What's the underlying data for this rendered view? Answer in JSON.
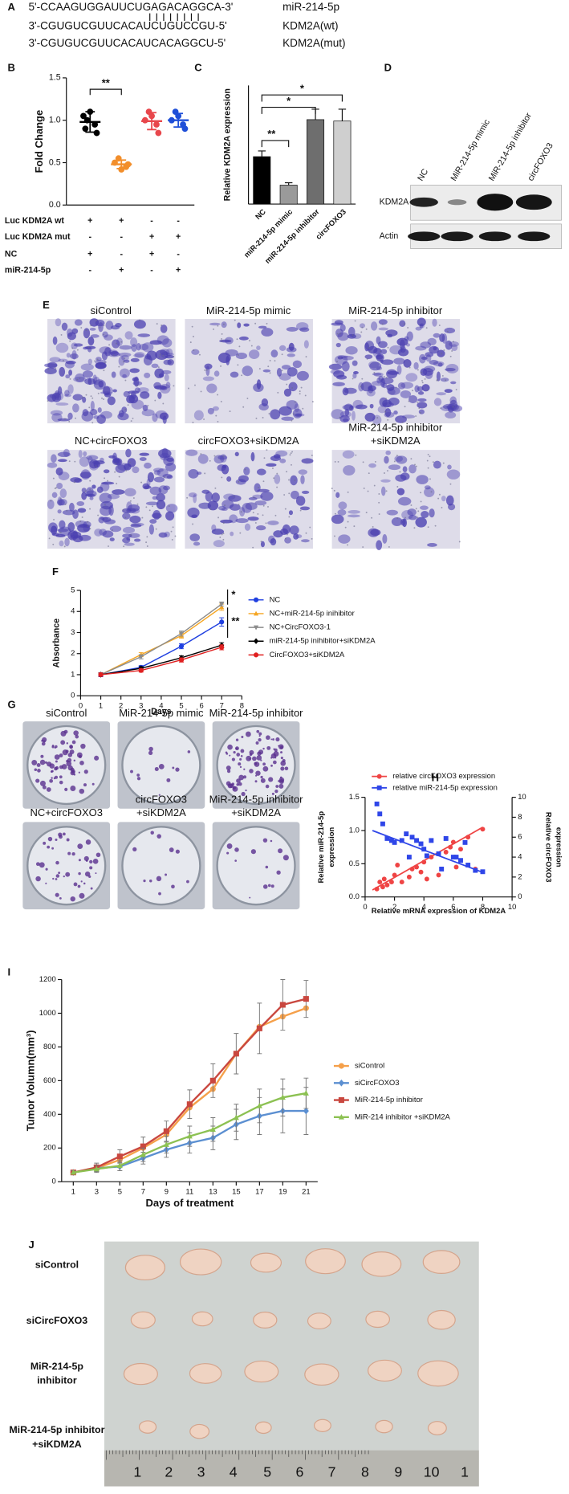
{
  "panel_labels": [
    "A",
    "B",
    "C",
    "D",
    "E",
    "F",
    "G",
    "H",
    "I",
    "J"
  ],
  "panel_a": {
    "sequences": [
      "5'-CCAAGUGGAUUCUGAGACAGGCA-3'",
      "3'-CGUGUCGUUCACAUCUGUCCGU-5'",
      "3'-CGUGUCGUUCACAUCACAGGCU-5'"
    ],
    "names": [
      "miR-214-5p",
      "KDM2A(wt)",
      "KDM2A(mut)"
    ]
  },
  "panel_b_table": {
    "rows": [
      {
        "label": "Luc KDM2A wt",
        "signs": [
          "+",
          "+",
          "-",
          "-"
        ]
      },
      {
        "label": "Luc KDM2A mut",
        "signs": [
          "-",
          "-",
          "+",
          "+"
        ]
      },
      {
        "label": "NC",
        "signs": [
          "+",
          "-",
          "+",
          "-"
        ]
      },
      {
        "label": "miR-214-5p",
        "signs": [
          "-",
          "+",
          "-",
          "+"
        ]
      }
    ]
  },
  "panel_d": {
    "lanes": [
      "NC",
      "MiR-214-5p mimic",
      "MiR-214-5p inhibitor",
      "circFOXO3"
    ],
    "bands": [
      "KDM2A",
      "Actin"
    ]
  },
  "panel_e": {
    "labels": [
      [
        "siControl"
      ],
      [
        "MiR-214-5p mimic"
      ],
      [
        "MiR-214-5p inhibitor"
      ],
      [
        "NC+circFOXO3"
      ],
      [
        "circFOXO3+siKDM2A"
      ],
      [
        "MiR-214-5p inhibitor",
        "+siKDM2A"
      ]
    ]
  },
  "panel_g": {
    "labels": [
      [
        "siControl"
      ],
      [
        "MiR-214-5p mimic"
      ],
      [
        "MiR-214-5p inhibitor"
      ],
      [
        "NC+circFOXO3"
      ],
      [
        "circFOXO3",
        "+siKDM2A"
      ],
      [
        "MiR-214-5p inhibitor",
        "+siKDM2A"
      ]
    ]
  },
  "panel_j": {
    "labels": [
      [
        "siControl"
      ],
      [
        "siCircFOXO3"
      ],
      [
        "MiR-214-5p",
        "inhibitor"
      ],
      [
        "MiR-214-5p inhibitor",
        "+siKDM2A"
      ]
    ],
    "ruler": [
      1,
      2,
      3,
      4,
      5,
      6,
      7,
      8,
      9,
      10,
      1
    ]
  },
  "chart_data": [
    {
      "type": "dot",
      "ylabel": "Fold Change",
      "ylim": [
        0,
        1.5
      ],
      "yticks": [
        {
          "value": 0,
          "label": "0.0"
        },
        0.5,
        {
          "value": 1,
          "label": "1.0"
        },
        1.5
      ],
      "groups": [
        {
          "color": "#000000",
          "values": [
            1.05,
            0.95,
            1.0,
            0.85,
            1.1,
            0.9
          ],
          "mean": 0.98,
          "sd": 0.12
        },
        {
          "color": "#f28e2b",
          "values": [
            0.5,
            0.45,
            0.55,
            0.48,
            0.42
          ],
          "mean": 0.48,
          "sd": 0.05
        },
        {
          "color": "#e8474c",
          "values": [
            1.0,
            0.95,
            1.1,
            0.85,
            1.05
          ],
          "mean": 0.99,
          "sd": 0.1
        },
        {
          "color": "#1f4fd8",
          "values": [
            1.0,
            0.95,
            1.1,
            0.9,
            1.05
          ],
          "mean": 1.0,
          "sd": 0.08
        }
      ],
      "annotations": [
        "**"
      ]
    },
    {
      "type": "bar",
      "ylabel": "Relative KDM2A expression",
      "categories": [
        "NC",
        "miR-214-5p mimic",
        "miR-214-5p inhibitor",
        "circFOXO3"
      ],
      "values": [
        1.0,
        0.4,
        1.78,
        1.75
      ],
      "errors": [
        0.12,
        0.05,
        0.22,
        0.25
      ],
      "colors": [
        "#000000",
        "#9a9a9a",
        "#6e6e6e",
        "#cfcfcf"
      ],
      "ylim": [
        0,
        2.5
      ],
      "annotations": [
        "**",
        "*",
        "*"
      ]
    },
    {
      "type": "line",
      "xlabel": "Days",
      "ylabel": "Absorbance",
      "x": [
        1,
        3,
        5,
        7
      ],
      "xlim": [
        0,
        8
      ],
      "xticks": [
        0,
        1,
        2,
        3,
        4,
        5,
        6,
        7,
        8
      ],
      "ylim": [
        0,
        5
      ],
      "yticks": [
        0,
        1,
        2,
        3,
        4,
        5
      ],
      "series": [
        {
          "name": "NC",
          "color": "#1f3fe0",
          "marker": "circle",
          "values": [
            1.0,
            1.35,
            2.35,
            3.5
          ],
          "errors": [
            0.1,
            0.08,
            0.12,
            0.2
          ]
        },
        {
          "name": "NC+miR-214-5p inihibitor",
          "color": "#f5a623",
          "marker": "triangle",
          "values": [
            1.0,
            1.95,
            2.85,
            4.2
          ],
          "errors": [
            0.08,
            0.1,
            0.12,
            0.15
          ]
        },
        {
          "name": "NC+CircFOXO3-1",
          "color": "#8c8c8c",
          "marker": "triangle-down",
          "values": [
            1.0,
            1.85,
            2.95,
            4.35
          ],
          "errors": [
            0.08,
            0.1,
            0.12,
            0.1
          ]
        },
        {
          "name": "miR-214-5p inihibitor+siKDM2A",
          "color": "#000000",
          "marker": "diamond",
          "values": [
            1.0,
            1.3,
            1.8,
            2.4
          ],
          "errors": [
            0.08,
            0.08,
            0.1,
            0.12
          ]
        },
        {
          "name": "CircFOXO3+siKDM2A",
          "color": "#e02020",
          "marker": "circle",
          "values": [
            1.0,
            1.2,
            1.7,
            2.3
          ],
          "errors": [
            0.08,
            0.08,
            0.1,
            0.12
          ]
        }
      ],
      "annotations": [
        "*",
        "**"
      ]
    },
    {
      "type": "scatter",
      "xlabel": "Relative mRNA expression of KDM2A",
      "ylabel": [
        "Relative miR-214-5p",
        "expression"
      ],
      "y2label": [
        "Relative circFOXO3",
        "expression"
      ],
      "xlim": [
        0,
        10
      ],
      "xticks": [
        0,
        2,
        4,
        6,
        8,
        10
      ],
      "ylim": [
        0,
        1.5
      ],
      "yticks": [
        {
          "value": 0,
          "label": "0.0"
        },
        0.5,
        {
          "value": 1,
          "label": "1.0"
        },
        1.5
      ],
      "y2lim": [
        0,
        10
      ],
      "y2ticks": [
        0,
        2,
        4,
        6,
        8,
        10
      ],
      "series": [
        {
          "name": "relative circFOXO3 expression",
          "color": "#ef4444",
          "marker": "circle",
          "axis": "y2",
          "x": [
            0.8,
            1.2,
            1.5,
            1.8,
            1.3,
            2.0,
            2.5,
            3.0,
            3.2,
            3.5,
            3.8,
            4.0,
            4.2,
            4.5,
            5.0,
            5.5,
            5.8,
            6.0,
            6.2,
            6.5,
            7.0,
            7.5,
            8.0,
            2.2,
            1.0
          ],
          "values": [
            0.8,
            1.0,
            1.2,
            1.5,
            1.8,
            2.2,
            1.5,
            2.0,
            2.8,
            3.0,
            2.5,
            3.5,
            1.8,
            4.0,
            2.2,
            4.5,
            5.0,
            5.5,
            3.0,
            4.8,
            6.0,
            2.8,
            6.8,
            3.2,
            1.5
          ],
          "trend_x": [
            0.5,
            8
          ],
          "trend_values": [
            0.7,
            7
          ]
        },
        {
          "name": "relative miR-214-5p expression",
          "color": "#2f46e8",
          "marker": "square",
          "x": [
            0.8,
            1.0,
            1.2,
            1.5,
            1.8,
            2.0,
            2.5,
            2.8,
            3.0,
            3.2,
            3.5,
            3.8,
            4.0,
            4.2,
            4.5,
            5.0,
            5.2,
            5.5,
            6.0,
            6.2,
            6.5,
            6.8,
            7.0,
            7.5,
            8.0
          ],
          "values": [
            1.4,
            1.25,
            1.1,
            0.88,
            0.85,
            0.82,
            0.85,
            0.95,
            0.6,
            0.9,
            0.85,
            0.8,
            0.72,
            0.62,
            0.85,
            0.65,
            0.42,
            0.88,
            0.6,
            0.6,
            0.55,
            0.82,
            0.48,
            0.4,
            0.38
          ],
          "trend_x": [
            0.5,
            8
          ],
          "trend_values": [
            1.0,
            0.37
          ]
        }
      ]
    },
    {
      "type": "line",
      "xlabel": "Days of treatment",
      "ylabel": "Tumor Volumn(mm³)",
      "x": [
        1,
        3,
        5,
        7,
        9,
        11,
        13,
        15,
        17,
        19,
        21
      ],
      "xlim": [
        0,
        22
      ],
      "xticks": [
        1,
        3,
        5,
        7,
        9,
        11,
        13,
        15,
        17,
        19,
        21
      ],
      "ylim": [
        0,
        1200
      ],
      "yticks": [
        0,
        200,
        400,
        600,
        800,
        1000,
        1200
      ],
      "series": [
        {
          "name": "siControl",
          "color": "#f5a04a",
          "marker": "circle",
          "values": [
            55,
            80,
            130,
            200,
            280,
            440,
            550,
            760,
            920,
            980,
            1030
          ]
        },
        {
          "name": "siCircFOXO3",
          "color": "#5b8fd1",
          "marker": "diamond",
          "values": [
            55,
            80,
            90,
            140,
            190,
            230,
            260,
            340,
            390,
            420,
            420
          ],
          "errors": [
            10,
            20,
            25,
            35,
            45,
            60,
            70,
            90,
            110,
            130,
            140
          ]
        },
        {
          "name": "MiR-214-5p inhibitor",
          "color": "#c9473f",
          "marker": "square",
          "values": [
            55,
            85,
            150,
            210,
            300,
            460,
            600,
            760,
            910,
            1050,
            1085
          ],
          "errors": [
            10,
            25,
            40,
            55,
            60,
            85,
            100,
            120,
            150,
            150,
            110
          ]
        },
        {
          "name": "MiR-214 inhibitor +siKDM2A",
          "color": "#8cc152",
          "marker": "triangle",
          "values": [
            55,
            75,
            95,
            160,
            220,
            270,
            310,
            380,
            450,
            500,
            525
          ],
          "errors": [
            10,
            20,
            30,
            40,
            50,
            60,
            70,
            80,
            100,
            110,
            90
          ]
        }
      ]
    }
  ]
}
